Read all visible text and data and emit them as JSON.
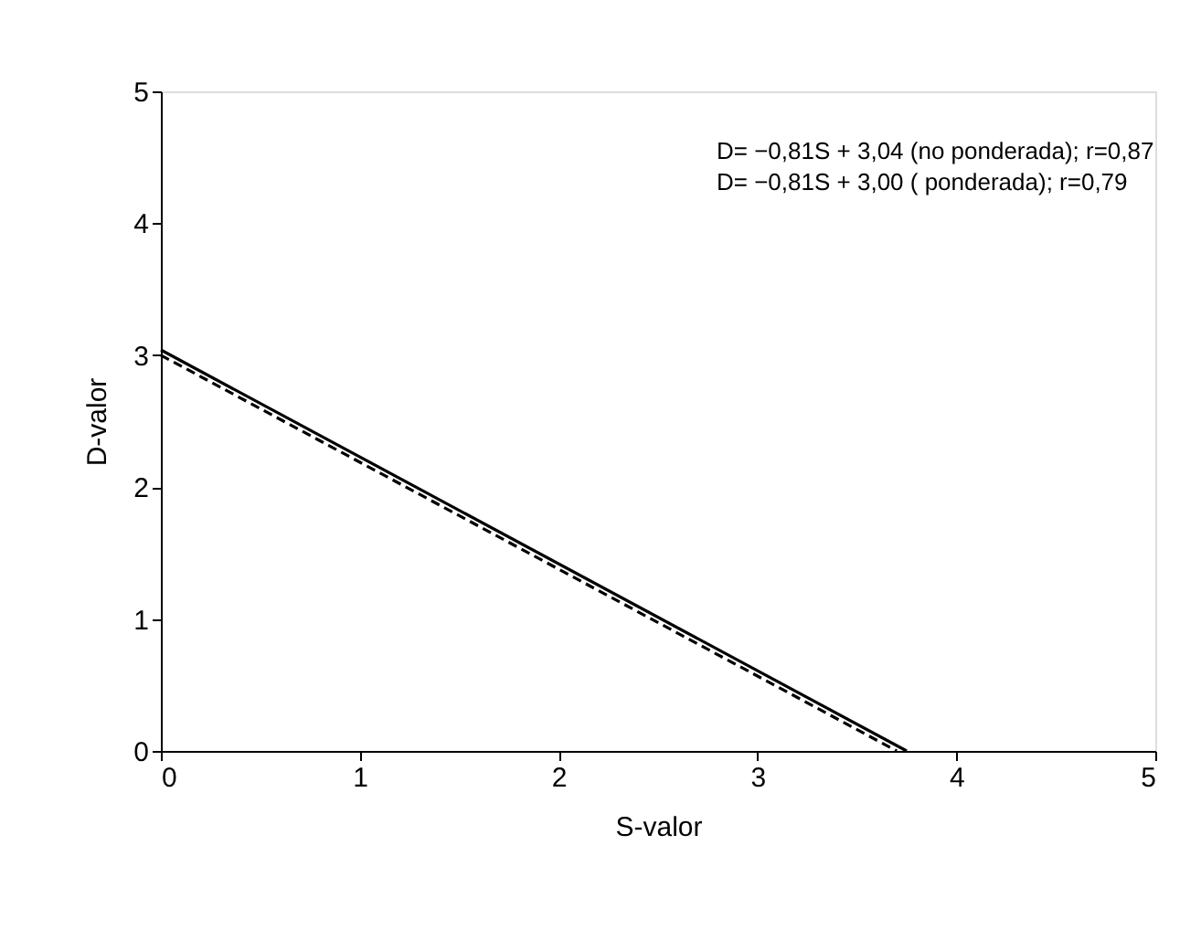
{
  "chart_data": {
    "type": "line",
    "xlabel": "S-valor",
    "ylabel": "D-valor",
    "xlim": [
      0,
      5
    ],
    "xticks": [
      0,
      1,
      2,
      3,
      4,
      5
    ],
    "ylim": [
      0,
      5
    ],
    "yticks": [
      0,
      1,
      2,
      3,
      4,
      5
    ],
    "grid": false,
    "annotations": [
      "D= −0,81S + 3,04 (no ponderada); r=0,87",
      "D= −0,81S + 3,00 ( ponderada); r=0,79"
    ],
    "series": [
      {
        "color": "#000000",
        "line_style": "solid",
        "x": [
          0,
          3.75
        ],
        "values": [
          3.04,
          0
        ]
      },
      {
        "color": "#000000",
        "line_style": "dashed",
        "x": [
          0,
          3.7
        ],
        "values": [
          3.0,
          0
        ]
      }
    ]
  }
}
